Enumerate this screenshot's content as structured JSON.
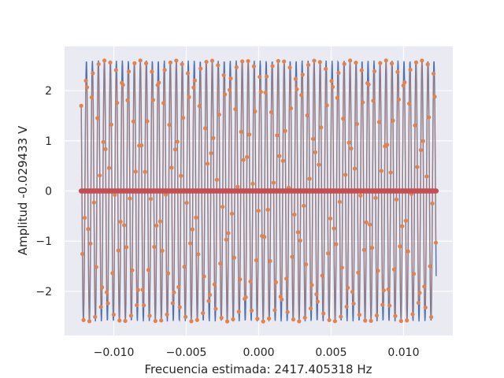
{
  "chart_data": {
    "type": "line",
    "xlabel": "Frecuencia estimada: 2417.405318 Hz",
    "ylabel": "Amplitud -0.029433 V",
    "xlim": [
      -0.0134,
      0.0134
    ],
    "ylim": [
      -2.88,
      2.88
    ],
    "x_ticks": [
      -0.01,
      -0.005,
      0.0,
      0.005,
      0.01
    ],
    "x_tick_labels": [
      "−0.010",
      "−0.005",
      "0.000",
      "0.005",
      "0.010"
    ],
    "y_ticks": [
      -2,
      -1,
      0,
      1,
      2
    ],
    "y_tick_labels": [
      "−2",
      "−1",
      "0",
      "1",
      "2"
    ],
    "grid": true,
    "series": [
      {
        "role": "continuous-signal",
        "color": "#4c72b0",
        "amplitude": 2.6,
        "frequency_hz": 2417.405318,
        "x_range": [
          -0.01225,
          0.01225
        ],
        "samples": 1201
      },
      {
        "role": "sampled-points",
        "color": "#dd8452",
        "marker": "circle",
        "amplitude": 2.6,
        "frequency_hz": 2417.405318,
        "x_range": [
          -0.01225,
          0.01225
        ],
        "sample_rate_hz": 12500,
        "samples": 307
      },
      {
        "role": "zero-samples",
        "color": "#c44e52",
        "marker": "circle",
        "y_value": 0,
        "x_range": [
          -0.01225,
          0.01225
        ],
        "samples": 307
      }
    ]
  }
}
